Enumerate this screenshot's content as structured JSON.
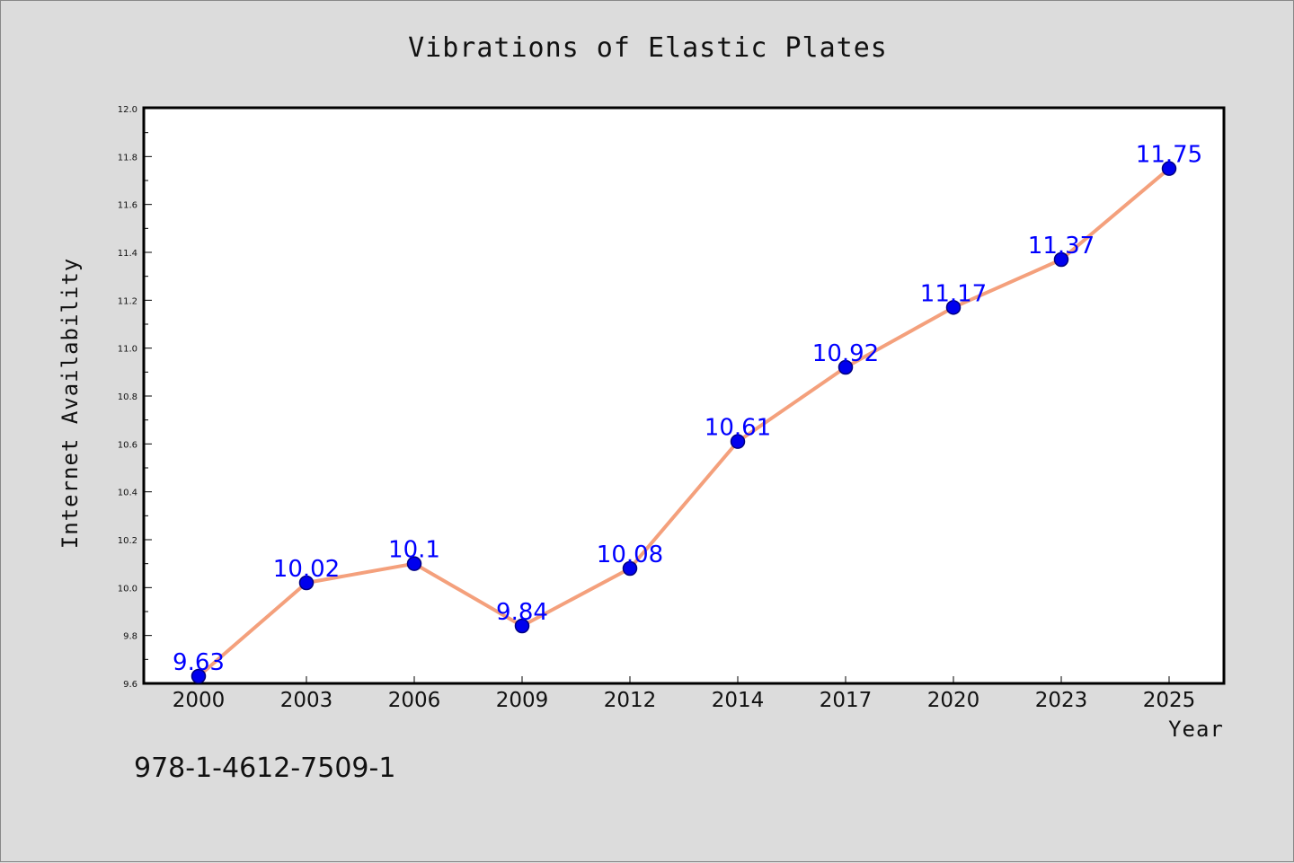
{
  "chart_data": {
    "type": "line",
    "title": "Vibrations of Elastic Plates",
    "xlabel": "Year",
    "ylabel": "Internet Availability",
    "categories": [
      "2000",
      "2003",
      "2006",
      "2009",
      "2012",
      "2014",
      "2017",
      "2020",
      "2023",
      "2025"
    ],
    "series": [
      {
        "values": [
          9.63,
          10.02,
          10.1,
          9.84,
          10.08,
          10.61,
          10.92,
          11.17,
          11.37,
          11.75
        ],
        "labels": [
          "9.63",
          "10.02",
          "10.1",
          "9.84",
          "10.08",
          "10.61",
          "10.92",
          "11.17",
          "11.37",
          "11.75"
        ],
        "line_color": "#f4a07c",
        "marker_color": "#0000ee",
        "marker_edge_color": "#000080"
      }
    ],
    "ylim": [
      9.6,
      12.0
    ],
    "yticks": [
      "9.6",
      "9.8",
      "10.0",
      "10.2",
      "10.4",
      "10.6",
      "10.8",
      "11.0",
      "11.2",
      "11.4",
      "11.6",
      "11.8",
      "12.0"
    ],
    "grid": false,
    "legend": "none",
    "data_label_color": "#0000ff",
    "background_color": "#dcdcdc",
    "plot_background_color": "#ffffff"
  },
  "footer_text": "978-1-4612-7509-1"
}
